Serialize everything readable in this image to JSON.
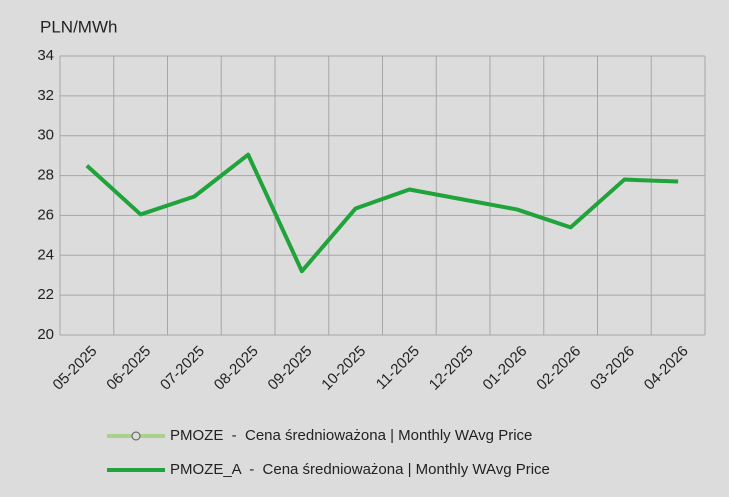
{
  "chart_data": {
    "type": "line",
    "y_label": "PLN/MWh",
    "categories": [
      "05-2025",
      "06-2025",
      "07-2025",
      "08-2025",
      "09-2025",
      "10-2025",
      "11-2025",
      "12-2025",
      "01-2026",
      "02-2026",
      "03-2026",
      "04-2026"
    ],
    "series": [
      {
        "name": "PMOZE  -  Cena średnioważona | Monthly WAvg Price",
        "color": "#a9d18e",
        "marker": "circle",
        "values": [
          null,
          null,
          null,
          null,
          null,
          null,
          null,
          null,
          null,
          null,
          null,
          null
        ]
      },
      {
        "name": "PMOZE_A  -  Cena średnioważona | Monthly WAvg Price",
        "color": "#1fa33a",
        "values": [
          28.5,
          26.05,
          26.95,
          29.05,
          23.2,
          26.35,
          27.3,
          26.8,
          26.3,
          25.4,
          27.8,
          27.7
        ]
      }
    ],
    "ylim": [
      20,
      34
    ],
    "yticks": [
      20,
      22,
      24,
      26,
      28,
      30,
      32,
      34
    ],
    "grid": true
  }
}
